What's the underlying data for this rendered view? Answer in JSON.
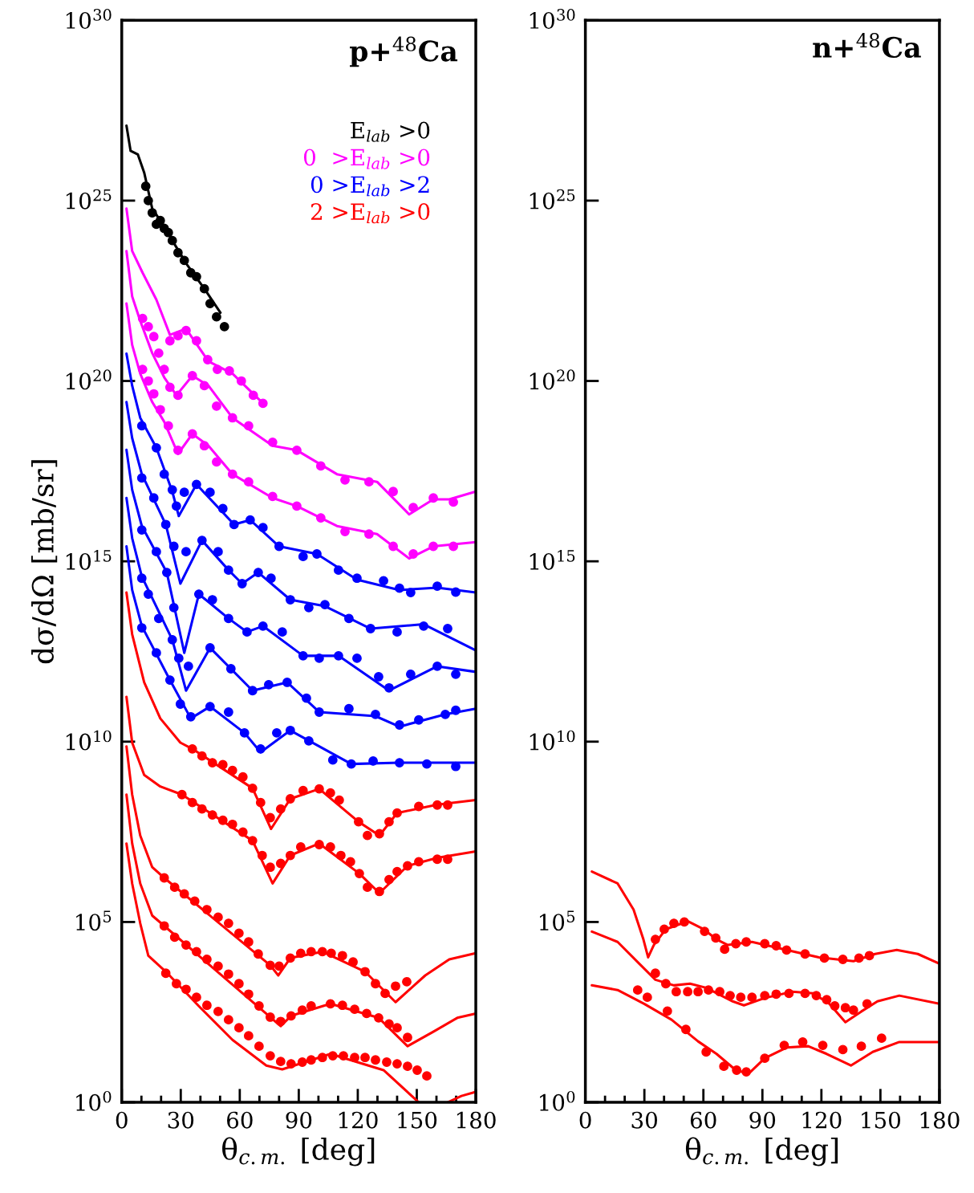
{
  "chart_data": [
    {
      "type": "scatter",
      "title": "p+$^{48}$Ca",
      "xlabel": "θ$_{c.m.}$ [deg]",
      "ylabel": "dσ/dΩ [mb/sr]",
      "log": "y",
      "grid": false,
      "legend": "top right",
      "line_style": "solid",
      "xlim": [
        0,
        180
      ],
      "ylim": [
        1,
        1e+30
      ],
      "xticks": [
        0,
        {
          "value": 10,
          "label": null
        },
        {
          "value": 20,
          "label": null
        },
        30,
        {
          "value": 40,
          "label": null
        },
        {
          "value": 50,
          "label": null
        },
        60,
        {
          "value": 70,
          "label": null
        },
        {
          "value": 80,
          "label": null
        },
        90,
        {
          "value": 100,
          "label": null
        },
        {
          "value": 110,
          "label": null
        },
        120,
        {
          "value": 130,
          "label": null
        },
        {
          "value": 140,
          "label": null
        },
        150,
        {
          "value": 160,
          "label": null
        },
        {
          "value": 170,
          "label": null
        },
        180
      ],
      "yticks": [
        {
          "value": 1,
          "label": "10$^{0}$"
        },
        {
          "value": 100000.0,
          "label": "10$^{5}$"
        },
        {
          "value": 10000000000.0,
          "label": "10$^{10}$"
        },
        {
          "value": 1000000000000000.0,
          "label": "10$^{15}$"
        },
        {
          "value": 1e+20,
          "label": "10$^{20}$"
        },
        {
          "value": 1e+25,
          "label": "10$^{25}$"
        },
        {
          "value": 1e+30,
          "label": "10$^{30}$"
        }
      ],
      "series": [
        {
          "type": "line",
          "color": "#000000",
          "x": [
            2.4,
            4.5,
            8.2,
            11.4,
            15.5,
            23.7,
            25.7,
            33.1,
            42,
            50.2
          ],
          "values": [
            1.2e+27,
            2.4e+26,
            1.9e+26,
            6e+25,
            6e+24,
            1.3e+24,
            7.8e+23,
            1.7e+23,
            3.6e+22,
            7.8e+21
          ]
        },
        {
          "marker": "circle",
          "color": "#000000",
          "name": "E$_{lab}$ >0",
          "x": [
            12.2,
            13.5,
            15.5,
            17.6,
            19.6,
            21.6,
            23.7,
            25.7,
            28.6,
            31.8,
            35.1,
            38,
            42,
            44.9,
            48.2,
            52.2
          ],
          "values": [
            2.5e+25,
            1e+25,
            4.6e+24,
            2.2e+24,
            2.8e+24,
            1.7e+24,
            1.3e+24,
            7.8e+23,
            3.6e+23,
            2.2e+23,
            1e+23,
            7.8e+22,
            3.6e+22,
            1.4e+22,
            6e+21,
            3.2e+21
          ]
        },
        {
          "type": "line",
          "color": "#ff00ff",
          "x": [
            2.4,
            5.3,
            10.6,
            17.6,
            24.5,
            32.7,
            44.1,
            56.3,
            71.8
          ],
          "values": [
            6e+24,
            4e+23,
            1e+23,
            1.8e+22,
            1.9e+21,
            2.8e+21,
            3.5e+20,
            1.6e+20,
            2.4e+19
          ]
        },
        {
          "marker": "circle",
          "color": "#ff00ff",
          "name": "0  >E$_{lab}$ >0",
          "x": [
            24.5,
            28.6,
            32.7,
            38,
            43.7,
            48.6,
            54.7,
            60.8,
            66.9,
            71.8
          ],
          "values": [
            1.3e+21,
            1.8e+21,
            2.5e+21,
            1.3e+21,
            3.9e+20,
            2.1e+20,
            1.9e+20,
            1e+20,
            4e+19,
            2.4e+19
          ]
        },
        {
          "type": "line",
          "color": "#ff00ff",
          "x": [
            2.4,
            5.3,
            9.4,
            15.5,
            21.6,
            27.8,
            35.9,
            44.1,
            56.3,
            76.7,
            89,
            109.4,
            129.8,
            146.1,
            158.4,
            166.5,
            180
          ],
          "values": [
            4e+23,
            2.2e+22,
            4.6e+21,
            5.9e+20,
            1.26e+20,
            4e+19,
            1.4e+20,
            7.4e+19,
            9.5e+18,
            1.6e+18,
            1.2e+18,
            2.6e+17,
            1.6e+17,
            2e+16,
            5.2e+16,
            5.2e+16,
            8.6e+16
          ]
        },
        {
          "marker": "circle",
          "color": "#ff00ff",
          "x": [
            10.6,
            13.5,
            16.3,
            18.8,
            21.6,
            24.5,
            28.6,
            35.9,
            42,
            48.2,
            56.3,
            64.5,
            76.7,
            89,
            101.2,
            113.5,
            125.7,
            138,
            148.2,
            158.4,
            168.6
          ],
          "values": [
            5.4e+21,
            3.2e+21,
            1.7e+21,
            5.9e+20,
            2.1e+20,
            6.7e+19,
            4e+19,
            1.4e+20,
            7.4e+19,
            2e+19,
            9.5e+18,
            5.7e+18,
            2e+18,
            1.2e+18,
            4.4e+17,
            1.8e+17,
            1.6e+17,
            8.6e+16,
            3.1e+16,
            5.7e+16,
            4.4e+16
          ]
        },
        {
          "type": "line",
          "color": "#ff00ff",
          "x": [
            2.4,
            5.3,
            9.4,
            15.5,
            21.6,
            28.6,
            35.9,
            44.1,
            56.3,
            76.7,
            89,
            109.4,
            129.8,
            146.1,
            158.4,
            180
          ],
          "values": [
            1.4e+22,
            1e+21,
            1.6e+20,
            2.6e+19,
            7.4e+18,
            9.5e+17,
            3.4e+18,
            1.6e+18,
            2.6e+17,
            5.7e+16,
            3.4e+16,
            9500000000000000.0,
            5700000000000000.0,
            1200000000000000.0,
            2600000000000000.0,
            3400000000000000.0
          ]
        },
        {
          "marker": "circle",
          "color": "#ff00ff",
          "x": [
            10.6,
            13.5,
            16.3,
            19.6,
            23.7,
            28.6,
            35.9,
            42,
            48.2,
            56.3,
            64.5,
            76.7,
            89,
            101.2,
            113.5,
            125.7,
            138,
            148.2,
            158.4,
            168.6
          ],
          "values": [
            2.1e+20,
            1e+20,
            4.4e+19,
            1.6e+19,
            5.7e+18,
            1.2e+18,
            3.4e+18,
            1.6e+18,
            5.7e+17,
            2.6e+17,
            1.6e+17,
            6.3e+16,
            3.4e+16,
            1.6e+16,
            6700000000000000.0,
            5700000000000000.0,
            2600000000000000.0,
            1600000000000000.0,
            2600000000000000.0,
            2600000000000000.0
          ]
        },
        {
          "type": "line",
          "color": "#0000ff",
          "x": [
            2.4,
            5.3,
            9.4,
            17.6,
            25.7,
            29,
            38,
            57.1,
            65.3,
            80,
            99.2,
            119.6,
            141.2,
            160.4,
            180
          ],
          "values": [
            5.7e+20,
            7.4e+19,
            9.5e+18,
            1.4e+18,
            8.6e+16,
            1.8e+16,
            1.36e+17,
            1.05e+16,
            1.4e+16,
            2600000000000000.0,
            1600000000000000.0,
            310000000000000.0,
            160000000000000.0,
            185000000000000.0,
            136000000000000.0
          ]
        },
        {
          "marker": "circle",
          "color": "#0000ff",
          "name": "0 >E$_{lab}$ >2",
          "x": [
            10.2,
            17.6,
            21.6,
            25.7,
            27.8,
            31.8,
            38,
            44.9,
            51.4,
            57.1,
            65.3,
            71.8,
            80,
            92.2,
            99.2,
            110.2,
            119.6,
            133.1,
            141.2,
            146.9,
            160.4,
            169.8
          ],
          "values": [
            5.7e+18,
            1.4e+18,
            2.6e+17,
            9.6e+16,
            3.4e+16,
            8.2e+16,
            1.36e+17,
            8.2e+16,
            2.9e+16,
            1.05e+16,
            1.4e+16,
            8600000000000000.0,
            2600000000000000.0,
            1360000000000000.0,
            1600000000000000.0,
            570000000000000.0,
            340000000000000.0,
            290000000000000.0,
            180000000000000.0,
            136000000000000.0,
            205000000000000.0,
            140000000000000.0
          ]
        },
        {
          "type": "line",
          "color": "#0000ff",
          "x": [
            2.4,
            5.3,
            10.2,
            22.4,
            29.8,
            40.8,
            54.3,
            61.2,
            69.4,
            85.7,
            103.3,
            126.5,
            153.5,
            180
          ],
          "values": [
            2.6e+19,
            2.6e+18,
            2.6e+17,
            1.05e+16,
            240000000000000.0,
            3800000000000000.0,
            570000000000000.0,
            240000000000000.0,
            490000000000000.0,
            86000000000000.0,
            57000000000000.0,
            13600000000000.0,
            18000000000000.0,
            3400000000000.0
          ]
        },
        {
          "marker": "circle",
          "color": "#0000ff",
          "x": [
            10.2,
            16.3,
            22.4,
            26.5,
            32.7,
            40.8,
            49,
            54.3,
            61.2,
            69.4,
            75.9,
            85.7,
            95.1,
            103.3,
            115.5,
            126.5,
            140,
            153.5,
            165.7
          ],
          "values": [
            2.05e+17,
            5.7e+16,
            1.05e+16,
            2600000000000000.0,
            1850000000000000.0,
            3800000000000000.0,
            1850000000000000.0,
            570000000000000.0,
            240000000000000.0,
            490000000000000.0,
            340000000000000.0,
            86000000000000.0,
            52000000000000.0,
            63000000000000.0,
            26000000000000.0,
            13600000000000.0,
            11000000000000.0,
            16000000000000.0,
            13600000000000.0
          ]
        },
        {
          "type": "line",
          "color": "#0000ff",
          "x": [
            2.4,
            5.3,
            10.2,
            22.9,
            31.8,
            39.2,
            54.3,
            63.7,
            71.8,
            92.2,
            110.2,
            135.9,
            160.4,
            180
          ],
          "values": [
            1.23e+18,
            9.6e+16,
            9500000000000000.0,
            490000000000000.0,
            2900000000000.0,
            123000000000000.0,
            26000000000000.0,
            11000000000000.0,
            16000000000000.0,
            2400000000000.0,
            2400000000000.0,
            260000000000.0,
            1230000000000.0,
            860000000000.0
          ]
        },
        {
          "marker": "circle",
          "color": "#0000ff",
          "x": [
            10.2,
            17.6,
            22.9,
            26.5,
            39.2,
            46.1,
            54.3,
            63.7,
            71.8,
            81.6,
            92.2,
            100.4,
            110.2,
            119.6,
            130.6,
            135.9,
            146.9,
            160.4,
            169.8
          ],
          "values": [
            7400000000000000.0,
            1850000000000000.0,
            490000000000000.0,
            52000000000000.0,
            123000000000000.0,
            86000000000000.0,
            26000000000000.0,
            11000000000000.0,
            16000000000000.0,
            11000000000000.0,
            2400000000000.0,
            2050000000000.0,
            2400000000000.0,
            2050000000000.0,
            630000000000.0,
            310000000000.0,
            740000000000.0,
            1230000000000.0,
            740000000000.0
          ]
        },
        {
          "type": "line",
          "color": "#0000ff",
          "x": [
            2.4,
            5.3,
            10.2,
            25.7,
            32.7,
            44.9,
            66.5,
            84.1,
            100.4,
            129,
            141.2,
            164.5,
            180
          ],
          "values": [
            5.7e+16,
            4400000000000000.0,
            380000000000000.0,
            6700000000000.0,
            260000000000.0,
            4000000000000.0,
            260000000000.0,
            440000000000.0,
            66000000000.0,
            51000000000.0,
            26000000000.0,
            57000000000.0,
            82000000000.0
          ]
        },
        {
          "marker": "circle",
          "color": "#0000ff",
          "x": [
            10.2,
            13.5,
            18.8,
            25.7,
            29,
            33.9,
            44.9,
            55.5,
            66.5,
            74.7,
            84.1,
            93.9,
            100.4,
            115.5,
            129,
            141.2,
            151,
            164.5,
            169.8
          ],
          "values": [
            340000000000000.0,
            123000000000000.0,
            26000000000000.0,
            6700000000000.0,
            2050000000000.0,
            1230000000000.0,
            4000000000000.0,
            1050000000000.0,
            260000000000.0,
            380000000000.0,
            440000000000.0,
            160000000000.0,
            66000000000.0,
            82000000000.0,
            57000000000.0,
            29000000000.0,
            40000000000.0,
            57000000000.0,
            74000000000.0
          ]
        },
        {
          "type": "line",
          "color": "#0000ff",
          "x": [
            2.4,
            5.3,
            10.2,
            24.5,
            35.1,
            44.9,
            62.4,
            70.6,
            85.7,
            116.7,
            141.2,
            180
          ],
          "values": [
            2600000000000000.0,
            160000000000000.0,
            16000000000000.0,
            510000000000.0,
            44000000000.0,
            94000000000.0,
            17500000000.0,
            5100000000.0,
            20500000000.0,
            2400000000.0,
            2600000000.0,
            2600000000.0
          ]
        },
        {
          "marker": "circle",
          "color": "#0000ff",
          "x": [
            10.2,
            17.6,
            24.5,
            29.8,
            35.1,
            44.9,
            54.3,
            62.4,
            70.6,
            78.8,
            85.7,
            95.1,
            107.3,
            116.7,
            127.8,
            141.2,
            155.1,
            169.8
          ],
          "values": [
            14300000000000.0,
            2900000000000.0,
            510000000000.0,
            110000000000.0,
            49000000000.0,
            94000000000.0,
            66000000000.0,
            17500000000.0,
            6300000000.0,
            17500000000.0,
            20500000000.0,
            10500000000.0,
            3100000000.0,
            2400000000.0,
            2900000000.0,
            2600000000.0,
            2400000000.0,
            2050000000.0
          ]
        },
        {
          "type": "line",
          "color": "#ff0000",
          "x": [
            2.4,
            5.3,
            11.4,
            19.6,
            29.8,
            35.9,
            66.5,
            75.9,
            85.7,
            100.4,
            120.4,
            131,
            140,
            160.4,
            180
          ],
          "values": [
            136000000000000.0,
            9500000000000.0,
            440000000000.0,
            44000000000.0,
            9400000000.0,
            6300000000.0,
            510000000.0,
            38000000.0,
            260000000.0,
            490000000.0,
            60000000.0,
            25000000.0,
            105000000.0,
            180000000.0,
            240000000.0
          ]
        },
        {
          "marker": "circle",
          "color": "#ff0000",
          "name": "2 >E$_{lab}$ >0",
          "x": [
            35.9,
            40.8,
            46.1,
            51.4,
            56.3,
            61.6,
            66.5,
            70.6,
            75.5,
            80.8,
            85.7,
            92.2,
            100.4,
            106.1,
            110.6,
            120.4,
            124.9,
            131,
            135.9,
            140,
            151,
            160.4,
            165.7
          ],
          "values": [
            6300000000.0,
            4000000000.0,
            2600000000.0,
            2300000000.0,
            1600000000.0,
            1050000000.0,
            510000000.0,
            205000000.0,
            78000000.0,
            136000000.0,
            260000000.0,
            440000000.0,
            490000000.0,
            380000000.0,
            240000000.0,
            60000000.0,
            25000000.0,
            28000000.0,
            60000000.0,
            105000000.0,
            160000000.0,
            175000000.0,
            175000000.0
          ]
        },
        {
          "type": "line",
          "color": "#ff0000",
          "x": [
            2.4,
            5.3,
            11.4,
            19.6,
            30.6,
            66.5,
            76.7,
            85.7,
            100.4,
            120.8,
            131,
            145.3,
            160.4,
            180
          ],
          "values": [
            175000000000.0,
            9400000000.0,
            1200000000.0,
            570000000.0,
            340000000.0,
            18000000.0,
            1170000.0,
            7000000.0,
            15000000.0,
            2200000.0,
            630000.0,
            3600000.0,
            6000000.0,
            9100000.0
          ]
        },
        {
          "marker": "circle",
          "color": "#ff0000",
          "x": [
            30.6,
            35.9,
            40.8,
            46.1,
            51.4,
            56.3,
            61.6,
            66.5,
            71.4,
            75.5,
            80.8,
            85.7,
            91,
            100.4,
            106.1,
            111.4,
            116.3,
            120.8,
            124.9,
            131,
            135.9,
            140,
            145.3,
            151,
            160.4,
            165.7
          ],
          "values": [
            340000000.0,
            205000000.0,
            136000000.0,
            93000000.0,
            66000000.0,
            51000000.0,
            31000000.0,
            18000000.0,
            7000000.0,
            3300000.0,
            4200000.0,
            7000000.0,
            12000000.0,
            14000000.0,
            12000000.0,
            7000000.0,
            4700000.0,
            2200000.0,
            920000.0,
            700000.0,
            1500000.0,
            2500000.0,
            3600000.0,
            4700000.0,
            5500000.0,
            5500000.0
          ]
        },
        {
          "type": "line",
          "color": "#ff0000",
          "x": [
            2.4,
            5.3,
            9.4,
            15.5,
            21.6,
            75.5,
            79.6,
            85.7,
            102,
            123.7,
            139.2,
            154.3,
            166.5,
            180
          ],
          "values": [
            7400000000.0,
            340000000.0,
            25000000.0,
            3300000.0,
            1670000.0,
            6300.0,
            3300.0,
            10000.0,
            15000.0,
            4200.0,
            600.0,
            3300.0,
            9200.0,
            13600.0
          ]
        },
        {
          "marker": "circle",
          "color": "#ff0000",
          "x": [
            21.6,
            26.9,
            31.8,
            37.1,
            43.3,
            49,
            54.3,
            59.6,
            64.5,
            69.4,
            75.5,
            80,
            85.7,
            91,
            96.3,
            102,
            106.5,
            112.2,
            117.6,
            123.7,
            129,
            133.9,
            139.2,
            144.9
          ],
          "values": [
            1670000.0,
            920000.0,
            600000.0,
            380000.0,
            220000.0,
            136000.0,
            92000.0,
            49000.0,
            28000.0,
            13000.0,
            6300.0,
            6000.0,
            10000.0,
            13600.0,
            15000.0,
            15000.0,
            13600.0,
            11700.0,
            7800.0,
            4200.0,
            1950.0,
            1050.0,
            1670.0,
            2200.0
          ]
        },
        {
          "type": "line",
          "color": "#ff0000",
          "x": [
            2.4,
            5.3,
            9.4,
            15.5,
            21.6,
            75.5,
            80.8,
            86.1,
            106.1,
            130.6,
            145.3,
            158.4,
            170.6,
            180
          ],
          "values": [
            340000000.0,
            15000000.0,
            1170000.0,
            150000.0,
            78000.0,
            230.0,
            130.0,
            250.0,
            540.0,
            220.0,
            36.0,
            91.0,
            220.0,
            290.0
          ]
        },
        {
          "marker": "circle",
          "color": "#ff0000",
          "x": [
            21.6,
            26.9,
            32.7,
            38,
            43.3,
            49,
            54.3,
            59.6,
            64.5,
            69.8,
            75.5,
            80.8,
            86.1,
            91.8,
            96.3,
            106.1,
            112.2,
            118.4,
            124.5,
            130.6,
            135.9,
            140,
            145.3
          ],
          "values": [
            78000.0,
            38000.0,
            23000.0,
            15000.0,
            9200.0,
            6000.0,
            3600.0,
            1950.0,
            1000.0,
            470.0,
            230.0,
            175.0,
            250.0,
            360.0,
            470.0,
            540.0,
            490.0,
            380.0,
            290.0,
            220.0,
            150.0,
            117.0,
            63.0
          ]
        },
        {
          "type": "line",
          "color": "#ff0000",
          "x": [
            2.4,
            5.3,
            9.4,
            13.5,
            22.4,
            40,
            56.3,
            73.5,
            81.6,
            106.1,
            133.1,
            151,
            156,
            165.7,
            172.7,
            180
          ],
          "values": [
            15000000.0,
            1170000.0,
            92000.0,
            11700.0,
            4200.0,
            420.0,
            54.0,
            10.5,
            8.2,
            22.0,
            7.8,
            1,
            null,
            1,
            1.5,
            1.95
          ]
        },
        {
          "marker": "circle",
          "color": "#ff0000",
          "x": [
            22.4,
            27.8,
            32.7,
            38,
            43.3,
            49,
            54.3,
            59.6,
            64.5,
            69.8,
            75.5,
            80.8,
            86.1,
            91.8,
            96.3,
            102,
            107.3,
            112.7,
            118.4,
            123.7,
            129,
            134.7,
            140,
            145.3,
            150.2,
            155.1
          ],
          "values": [
            3800.0,
            1950.0,
            1360.0,
            820.0,
            490.0,
            330.0,
            195.0,
            117.0,
            70.0,
            36.0,
            19.5,
            13.6,
            11.7,
            13.0,
            15.0,
            17.5,
            19.5,
            19.5,
            17.5,
            17.5,
            15.0,
            13.0,
            11.7,
            10.0,
            7.8,
            5.4
          ]
        }
      ]
    },
    {
      "type": "scatter",
      "title": "n+$^{48}$Ca",
      "xlabel": "θ$_{c.m.}$ [deg]",
      "log": "y",
      "grid": false,
      "legend": false,
      "line_style": "solid",
      "xlim": [
        0,
        180
      ],
      "ylim": [
        1,
        1e+30
      ],
      "xticks": [
        0,
        {
          "value": 10,
          "label": null
        },
        {
          "value": 20,
          "label": null
        },
        30,
        {
          "value": 40,
          "label": null
        },
        {
          "value": 50,
          "label": null
        },
        60,
        {
          "value": 70,
          "label": null
        },
        {
          "value": 80,
          "label": null
        },
        90,
        {
          "value": 100,
          "label": null
        },
        {
          "value": 110,
          "label": null
        },
        120,
        {
          "value": 130,
          "label": null
        },
        {
          "value": 140,
          "label": null
        },
        150,
        {
          "value": 160,
          "label": null
        },
        {
          "value": 170,
          "label": null
        },
        180
      ],
      "yticks": [
        {
          "value": 1,
          "label": "10$^{0}$"
        },
        {
          "value": 100000.0,
          "label": "10$^{5}$"
        },
        {
          "value": 10000000000.0,
          "label": "10$^{10}$"
        },
        {
          "value": 1000000000000000.0,
          "label": "10$^{15}$"
        },
        {
          "value": 1e+20,
          "label": "10$^{20}$"
        },
        {
          "value": 1e+25,
          "label": "10$^{25}$"
        },
        {
          "value": 1e+30,
          "label": "10$^{30}$"
        }
      ],
      "series": [
        {
          "type": "line",
          "color": "#ff0000",
          "x": [
            3.3,
            16.4,
            24.5,
            29.5,
            31.9,
            34.8,
            40.9,
            52,
            60.1,
            66.7,
            72.4,
            84.7,
            102.3,
            118.7,
            136.3,
            147.3,
            158.3,
            169,
            180
          ],
          "values": [
            2500000.0,
            1170000.0,
            220000.0,
            33000.0,
            10500.0,
            23000.0,
            63000.0,
            105000.0,
            63000.0,
            33000.0,
            23000.0,
            28000.0,
            16700.0,
            10500.0,
            8200.0,
            13000.0,
            16700.0,
            13000.0,
            7000.0
          ]
        },
        {
          "marker": "circle",
          "color": "#ff0000",
          "x": [
            35.6,
            40.1,
            45,
            50.3,
            60.6,
            66.3,
            70.8,
            76.5,
            81.8,
            91.2,
            97,
            102.3,
            111.7,
            121.5,
            130.9,
            139.1,
            144.4
          ],
          "values": [
            33000.0,
            63000.0,
            92000.0,
            100000.0,
            55000.0,
            36000.0,
            17500.0,
            25000.0,
            28000.0,
            25000.0,
            22000.0,
            16700.0,
            13000.0,
            10000.0,
            9200.0,
            10000.0,
            11700.0
          ]
        },
        {
          "type": "line",
          "color": "#ff0000",
          "x": [
            3.3,
            16.4,
            27.4,
            35.6,
            45,
            53.2,
            61.4,
            74.9,
            80.6,
            91.2,
            105.2,
            115.8,
            124,
            132.2,
            140.3,
            148.5,
            159.6,
            180
          ],
          "values": [
            54000.0,
            28000.0,
            7000.0,
            2500.0,
            1750.0,
            1950.0,
            1500.0,
            630.0,
            490.0,
            780.0,
            1170.0,
            1050.0,
            540.0,
            167.0,
            330.0,
            630.0,
            910.0,
            540.0
          ]
        },
        {
          "marker": "circle",
          "color": "#ff0000",
          "x": [
            35.6,
            40.9,
            46.2,
            52,
            57.3,
            62.6,
            68.3,
            73.6,
            79,
            84.7,
            91.2,
            97,
            103.5,
            111.7,
            117.4,
            122.7,
            126.8,
            132.2,
            136.3,
            143.2
          ],
          "values": [
            3800.0,
            1950.0,
            1170.0,
            1170.0,
            1170.0,
            1300.0,
            1170.0,
            910.0,
            820.0,
            820.0,
            910.0,
            1000.0,
            1050.0,
            1050.0,
            910.0,
            700.0,
            470.0,
            420.0,
            360.0,
            540.0
          ]
        },
        {
          "type": "line",
          "color": "#ff0000",
          "x": [
            3.3,
            16.4,
            29.9,
            43.8,
            57.3,
            66.7,
            76.5,
            83.1,
            91.2,
            102.3,
            113.3,
            122.7,
            135,
            146.1,
            159.6,
            180
          ],
          "values": [
            1750.0,
            1300.0,
            540.0,
            195.0,
            49.0,
            22.0,
            7.8,
            6.3,
            16.7,
            33.0,
            36.0,
            22.0,
            10.5,
            25.0,
            47.0,
            47.0
          ]
        },
        {
          "marker": "circle",
          "color": "#ff0000",
          "x": [
            26.6,
            31.5,
            41.7,
            51.1,
            61.4,
            70.4,
            76.9,
            81.8,
            91.2,
            101.1,
            110.5,
            120.7,
            130.9,
            140.3,
            150.6
          ],
          "values": [
            1300.0,
            820.0,
            340.0,
            105.0,
            25.0,
            10.0,
            7.8,
            7,
            16.7,
            38.0,
            47.0,
            38.0,
            29.0,
            36.0,
            60.0
          ]
        }
      ]
    }
  ]
}
